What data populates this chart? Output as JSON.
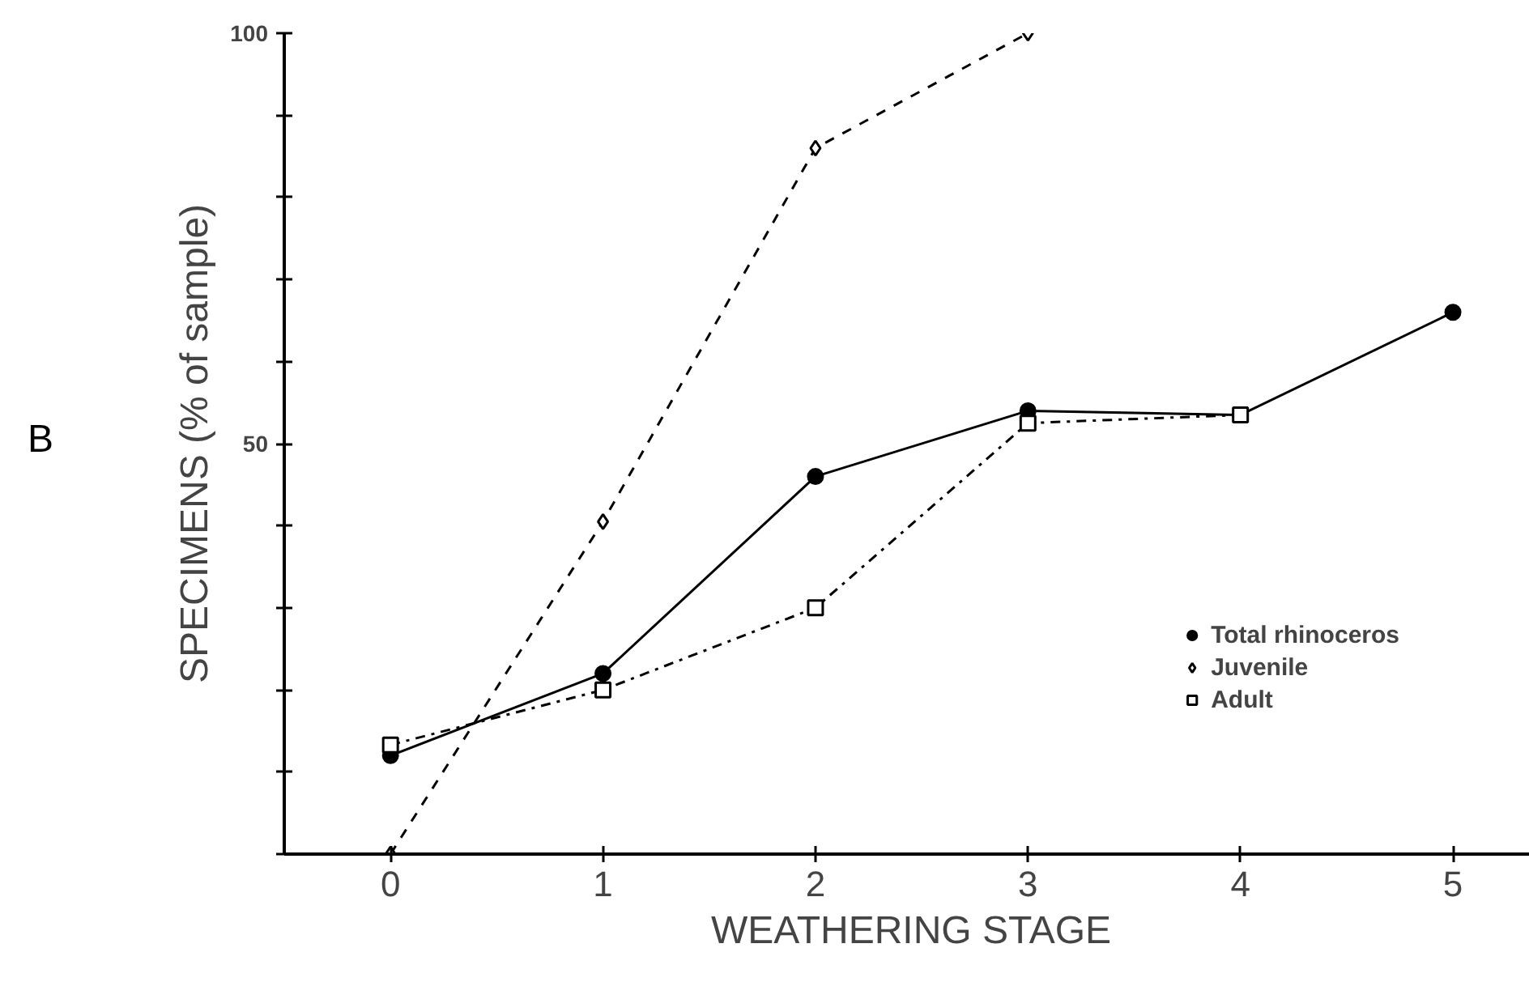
{
  "chart_data": {
    "type": "line",
    "xlabel": "WEATHERING STAGE",
    "ylabel": "SPECIMENS (% of sample)",
    "annotations": [
      "B"
    ],
    "x": [
      0,
      1,
      2,
      3,
      4,
      5
    ],
    "xlim": [
      -0.5,
      5.4
    ],
    "xticks": [
      0,
      1,
      2,
      3,
      4,
      5
    ],
    "ylim": [
      0,
      100
    ],
    "yticks": [
      {
        "value": 0,
        "label": null
      },
      {
        "value": 10,
        "label": null
      },
      {
        "value": 20,
        "label": null
      },
      {
        "value": 30,
        "label": null
      },
      {
        "value": 40,
        "label": null
      },
      50,
      {
        "value": 60,
        "label": null
      },
      {
        "value": 70,
        "label": null
      },
      {
        "value": 80,
        "label": null
      },
      {
        "value": 90,
        "label": null
      },
      100
    ],
    "grid": false,
    "legend": "bottom right",
    "series": [
      {
        "name": "Total rhinoceros",
        "color": "#000000",
        "marker": "circle",
        "line_style": "solid",
        "values": [
          12,
          22,
          46,
          54,
          53.5,
          66
        ]
      },
      {
        "name": "Juvenile",
        "color": "#000000",
        "marker": "diamond",
        "line_style": "dashed",
        "values": [
          0,
          40.5,
          86,
          100,
          null,
          null
        ]
      },
      {
        "name": "Adult",
        "color": "#000000",
        "marker": "square",
        "line_style": "dashdot",
        "values": [
          13.3,
          20,
          30,
          52.5,
          53.5,
          null
        ]
      }
    ]
  }
}
